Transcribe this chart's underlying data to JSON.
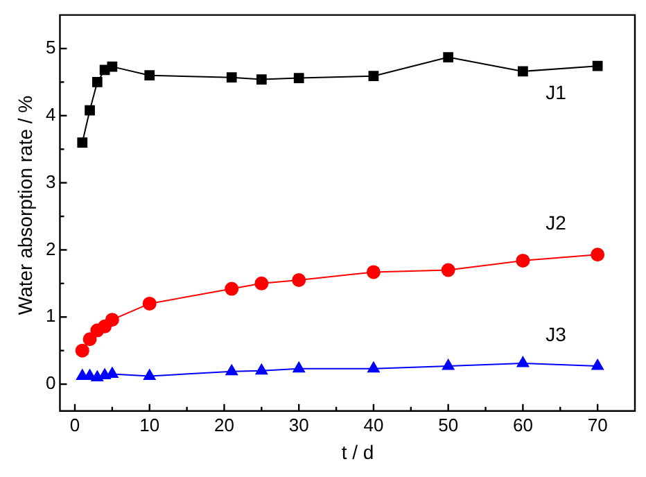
{
  "chart_data": {
    "type": "line",
    "xlabel": "t / d",
    "ylabel": "Water absorption rate / %",
    "x": [
      1,
      2,
      3,
      4,
      5,
      10,
      21,
      25,
      30,
      40,
      50,
      60,
      70
    ],
    "series": [
      {
        "name": "J1",
        "color": "#000000",
        "marker": "square",
        "values": [
          3.6,
          4.08,
          4.5,
          4.68,
          4.73,
          4.6,
          4.57,
          4.54,
          4.56,
          4.59,
          4.87,
          4.66,
          4.74
        ]
      },
      {
        "name": "J2",
        "color": "#ff0000",
        "marker": "circle",
        "values": [
          0.5,
          0.67,
          0.8,
          0.86,
          0.96,
          1.2,
          1.42,
          1.5,
          1.55,
          1.67,
          1.7,
          1.84,
          1.93
        ]
      },
      {
        "name": "J3",
        "color": "#0000ff",
        "marker": "triangle",
        "values": [
          0.12,
          0.12,
          0.1,
          0.13,
          0.15,
          0.12,
          0.19,
          0.2,
          0.23,
          0.23,
          0.27,
          0.31,
          0.27
        ]
      }
    ],
    "xlim": [
      -2,
      75
    ],
    "ylim": [
      -0.4,
      5.5
    ],
    "xticks": [
      0,
      {
        "value": 5,
        "label": null
      },
      10,
      {
        "value": 15,
        "label": null
      },
      20,
      {
        "value": 25,
        "label": null
      },
      30,
      {
        "value": 35,
        "label": null
      },
      40,
      {
        "value": 45,
        "label": null
      },
      50,
      {
        "value": 55,
        "label": null
      },
      60,
      {
        "value": 65,
        "label": null
      },
      70
    ],
    "yticks": [
      0,
      {
        "value": 0.5,
        "label": null
      },
      1,
      {
        "value": 1.5,
        "label": null
      },
      2,
      {
        "value": 2.5,
        "label": null
      },
      3,
      {
        "value": 3.5,
        "label": null
      },
      4,
      {
        "value": 4.5,
        "label": null
      },
      5
    ],
    "grid": false,
    "legend": false
  }
}
